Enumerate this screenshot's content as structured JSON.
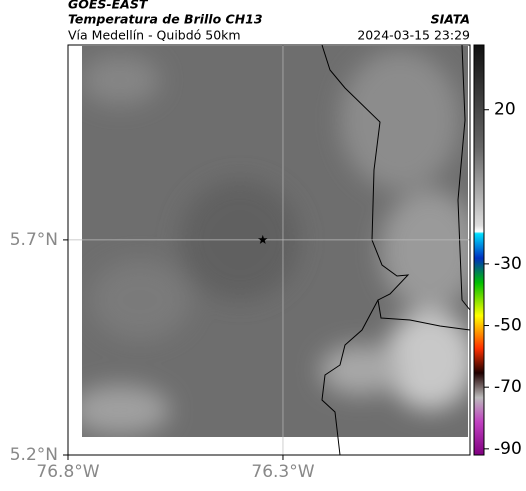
{
  "header": {
    "title": "GOES-EAST",
    "subtitle": "Temperatura de Brillo CH13",
    "location": "Vía Medellín - Quibdó 50km",
    "source": "SIATA",
    "datetime": "2024-03-15 23:29"
  },
  "chart_data": {
    "type": "map",
    "xlim": [
      -76.8,
      -75.865
    ],
    "ylim": [
      5.2,
      6.153
    ],
    "xticks": [
      {
        "value": -76.8,
        "label": "76.8°W"
      },
      {
        "value": -76.3,
        "label": "76.3°W"
      }
    ],
    "yticks": [
      {
        "value": 5.2,
        "label": "5.2°N"
      },
      {
        "value": 5.7,
        "label": "5.7°N"
      }
    ],
    "grid": true,
    "marker": {
      "x": -76.347,
      "y": 5.7
    },
    "colorbar": {
      "lim": [
        -92,
        41
      ],
      "ticks": [
        20,
        -30,
        -50,
        -70,
        -90
      ]
    }
  }
}
